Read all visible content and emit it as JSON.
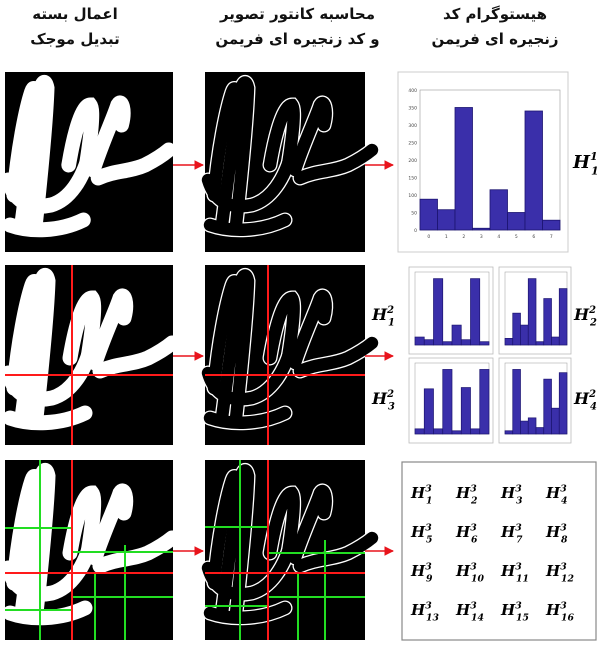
{
  "headers": {
    "col1": [
      "اعمال بسته",
      "تبدیل موجک"
    ],
    "col2": [
      "محاسبه کانتور تصویر",
      "و کد زنجیره ای فریمن"
    ],
    "col3": [
      "هیستوگرام کد",
      "زنجیره ای فریمن"
    ]
  },
  "colors": {
    "arrow": "#e8141c",
    "grid_green": "#22dd22",
    "grid_red": "#ff1a1a",
    "bars": "#3a2faa",
    "bar_edge": "#1c1470"
  },
  "chart_data": [
    {
      "type": "bar",
      "name_label": {
        "base": "H",
        "sub": "1",
        "sup": "1"
      },
      "categories": [
        "0",
        "1",
        "2",
        "3",
        "4",
        "5",
        "6",
        "7"
      ],
      "values": [
        88,
        58,
        350,
        5,
        115,
        50,
        340,
        28
      ],
      "yticks": [
        "0",
        "50",
        "100",
        "150",
        "200",
        "250",
        "300",
        "350",
        "400"
      ],
      "ylim": [
        0,
        400
      ]
    },
    {
      "type": "bar",
      "name_label": {
        "base": "H",
        "sub": "1",
        "sup": "2"
      },
      "values": [
        12,
        8,
        100,
        5,
        30,
        8,
        100,
        5
      ],
      "ylim": [
        0,
        110
      ]
    },
    {
      "type": "bar",
      "name_label": {
        "base": "H",
        "sub": "2",
        "sup": "2"
      },
      "values": [
        10,
        48,
        30,
        100,
        5,
        70,
        12,
        85
      ],
      "ylim": [
        0,
        110
      ]
    },
    {
      "type": "bar",
      "name_label": {
        "base": "H",
        "sub": "3",
        "sup": "2"
      },
      "values": [
        8,
        70,
        8,
        100,
        5,
        72,
        8,
        100
      ],
      "ylim": [
        0,
        110
      ]
    },
    {
      "type": "bar",
      "name_label": {
        "base": "H",
        "sub": "4",
        "sup": "2"
      },
      "values": [
        5,
        100,
        20,
        25,
        10,
        85,
        40,
        95
      ],
      "ylim": [
        0,
        110
      ]
    }
  ],
  "level3_grid": [
    [
      "1",
      "2",
      "3",
      "4"
    ],
    [
      "5",
      "6",
      "7",
      "8"
    ],
    [
      "9",
      "10",
      "11",
      "12"
    ],
    [
      "13",
      "14",
      "15",
      "16"
    ]
  ],
  "level3_sup": "3",
  "level3_base": "H"
}
